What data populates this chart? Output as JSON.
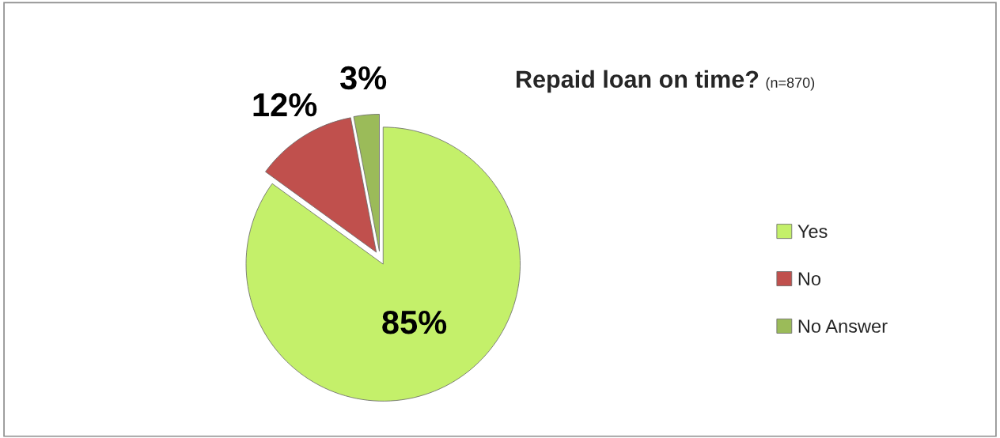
{
  "chart_data": {
    "type": "pie",
    "title": "Repaid loan on time?",
    "subtitle": "(n=870)",
    "categories": [
      "Yes",
      "No",
      "No Answer"
    ],
    "values": [
      85,
      12,
      3
    ],
    "colors": [
      "#c4f06a",
      "#c0504d",
      "#9bbb59"
    ],
    "value_labels": [
      "85%",
      "12%",
      "3%"
    ],
    "legend": "right"
  }
}
